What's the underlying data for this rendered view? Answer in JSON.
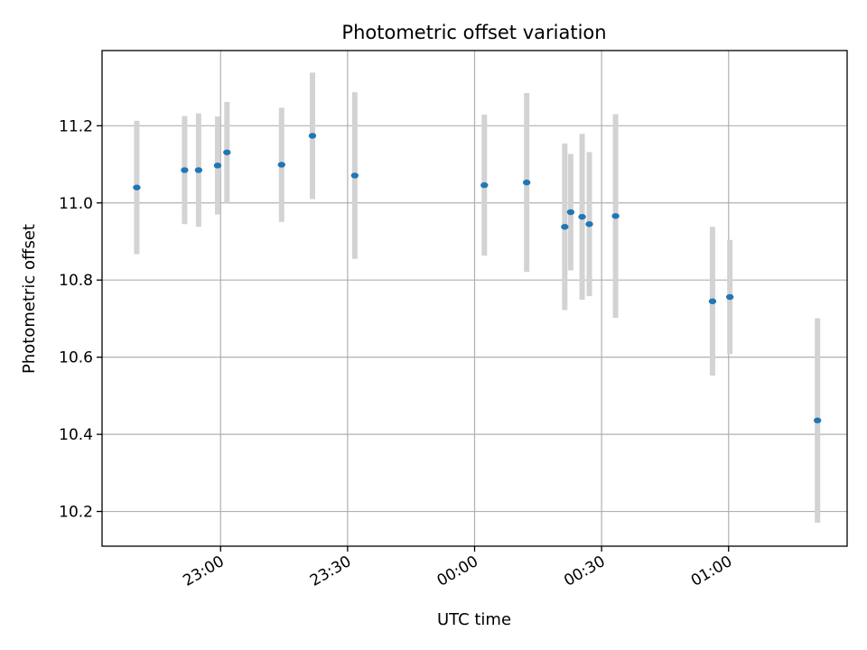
{
  "chart_data": {
    "type": "scatter",
    "title": "Photometric offset variation",
    "xlabel": "UTC time",
    "ylabel": "Photometric offset",
    "grid": true,
    "legend": "none",
    "x_unit": "minutes",
    "xlim": [
      -28,
      148
    ],
    "ylim": [
      10.11,
      11.395
    ],
    "x_ticks": [
      {
        "value": 0,
        "label": "23:00"
      },
      {
        "value": 30,
        "label": "23:30"
      },
      {
        "value": 60,
        "label": "00:00"
      },
      {
        "value": 90,
        "label": "00:30"
      },
      {
        "value": 120,
        "label": "01:00"
      }
    ],
    "y_ticks": [
      {
        "value": 10.2,
        "label": "10.2"
      },
      {
        "value": 10.4,
        "label": "10.4"
      },
      {
        "value": 10.6,
        "label": "10.6"
      },
      {
        "value": 10.8,
        "label": "10.8"
      },
      {
        "value": 11.0,
        "label": "11.0"
      },
      {
        "value": 11.2,
        "label": "11.2"
      }
    ],
    "series": [
      {
        "marker_color": "#1f77b4",
        "errorbar_color": "#d3d3d3",
        "points": [
          {
            "x": -19.8,
            "y": 11.04,
            "yerr": 0.173
          },
          {
            "x": -8.5,
            "y": 11.085,
            "yerr": 0.14
          },
          {
            "x": -5.2,
            "y": 11.085,
            "yerr": 0.147
          },
          {
            "x": -0.7,
            "y": 11.097,
            "yerr": 0.127
          },
          {
            "x": 1.5,
            "y": 11.131,
            "yerr": 0.131
          },
          {
            "x": 14.4,
            "y": 11.099,
            "yerr": 0.148
          },
          {
            "x": 21.7,
            "y": 11.174,
            "yerr": 0.164
          },
          {
            "x": 31.7,
            "y": 11.071,
            "yerr": 0.216
          },
          {
            "x": 62.3,
            "y": 11.046,
            "yerr": 0.183
          },
          {
            "x": 72.3,
            "y": 11.053,
            "yerr": 0.232
          },
          {
            "x": 81.3,
            "y": 10.938,
            "yerr": 0.216
          },
          {
            "x": 82.7,
            "y": 10.976,
            "yerr": 0.151
          },
          {
            "x": 85.4,
            "y": 10.964,
            "yerr": 0.215
          },
          {
            "x": 87.1,
            "y": 10.945,
            "yerr": 0.187
          },
          {
            "x": 93.3,
            "y": 10.966,
            "yerr": 0.264
          },
          {
            "x": 116.2,
            "y": 10.745,
            "yerr": 0.193
          },
          {
            "x": 120.3,
            "y": 10.756,
            "yerr": 0.148
          },
          {
            "x": 141.0,
            "y": 10.436,
            "yerr": 0.265
          }
        ]
      }
    ]
  }
}
